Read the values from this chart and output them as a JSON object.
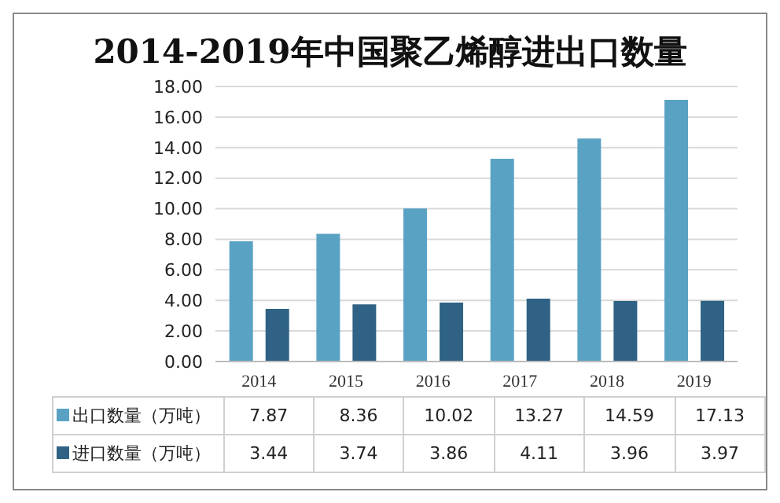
{
  "chart_data": {
    "type": "bar",
    "title": "2014-2019年中国聚乙烯醇进出口数量",
    "categories": [
      "2014",
      "2015",
      "2016",
      "2017",
      "2018",
      "2019"
    ],
    "series": [
      {
        "name": "出口数量（万吨）",
        "color": "#5aa2c4",
        "values": [
          7.87,
          8.36,
          10.02,
          13.27,
          14.59,
          17.13
        ]
      },
      {
        "name": "进口数量（万吨）",
        "color": "#2f6284",
        "values": [
          3.44,
          3.74,
          3.86,
          4.11,
          3.96,
          3.97
        ]
      }
    ],
    "ylim": [
      0,
      18
    ],
    "yticks": [
      {
        "value": 0,
        "label": "0.00"
      },
      {
        "value": 2,
        "label": "2.00"
      },
      {
        "value": 4,
        "label": "4.00"
      },
      {
        "value": 6,
        "label": "6.00"
      },
      {
        "value": 8,
        "label": "8.00"
      },
      {
        "value": 10,
        "label": "10.00"
      },
      {
        "value": 12,
        "label": "12.00"
      },
      {
        "value": 14,
        "label": "14.00"
      },
      {
        "value": 16,
        "label": "16.00"
      },
      {
        "value": 18,
        "label": "18.00"
      }
    ],
    "grid": "y",
    "legend": "bottom",
    "data_labels": true
  }
}
